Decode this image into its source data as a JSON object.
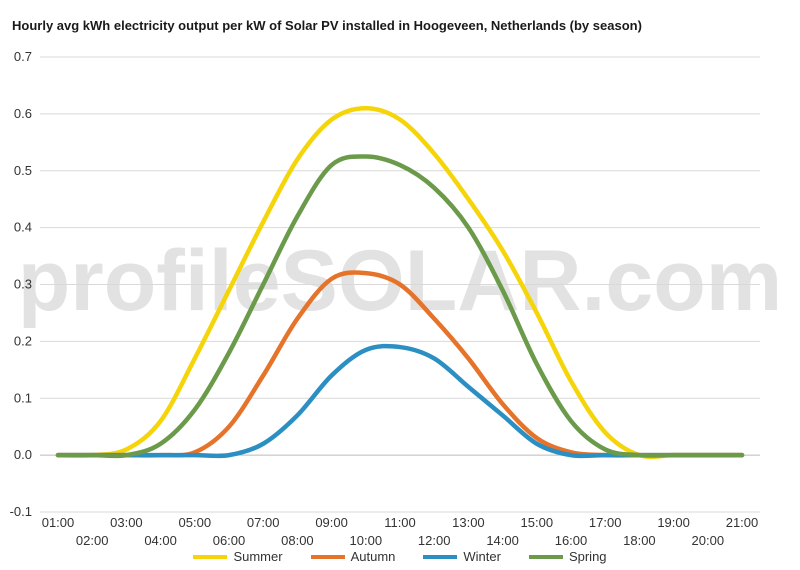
{
  "chart_data": {
    "type": "line",
    "title": "Hourly avg kWh electricity output per kW of Solar PV installed in Hoogeveen, Netherlands (by season)",
    "xlabel": "",
    "ylabel": "",
    "x": [
      "01:00",
      "02:00",
      "03:00",
      "04:00",
      "05:00",
      "06:00",
      "07:00",
      "08:00",
      "09:00",
      "10:00",
      "11:00",
      "12:00",
      "13:00",
      "14:00",
      "15:00",
      "16:00",
      "17:00",
      "18:00",
      "19:00",
      "20:00",
      "21:00"
    ],
    "ylim": [
      -0.1,
      0.7
    ],
    "yticks": [
      "-0.1",
      "0.0",
      "0.1",
      "0.2",
      "0.3",
      "0.4",
      "0.5",
      "0.6",
      "0.7"
    ],
    "grid": true,
    "legend_position": "bottom",
    "series": [
      {
        "name": "Summer",
        "color": "#f5d50a",
        "values": [
          0,
          0,
          0.01,
          0.06,
          0.17,
          0.29,
          0.41,
          0.52,
          0.59,
          0.61,
          0.59,
          0.53,
          0.45,
          0.36,
          0.25,
          0.13,
          0.04,
          0.0,
          0,
          0,
          0
        ]
      },
      {
        "name": "Autumn",
        "color": "#e6732a",
        "values": [
          0,
          0,
          0,
          0,
          0.005,
          0.05,
          0.14,
          0.24,
          0.31,
          0.32,
          0.3,
          0.24,
          0.17,
          0.09,
          0.03,
          0.005,
          0,
          0,
          0,
          0,
          0
        ]
      },
      {
        "name": "Winter",
        "color": "#2b8fc4",
        "values": [
          0,
          0,
          0,
          0,
          0,
          0,
          0.02,
          0.07,
          0.14,
          0.185,
          0.19,
          0.17,
          0.12,
          0.07,
          0.02,
          0,
          0,
          0,
          0,
          0,
          0
        ]
      },
      {
        "name": "Spring",
        "color": "#6b9b4a",
        "values": [
          0,
          0,
          0,
          0.02,
          0.08,
          0.18,
          0.3,
          0.42,
          0.51,
          0.525,
          0.51,
          0.47,
          0.4,
          0.29,
          0.16,
          0.06,
          0.01,
          0,
          0,
          0,
          0
        ]
      }
    ]
  },
  "watermark_text": "profileSOLAR.com"
}
